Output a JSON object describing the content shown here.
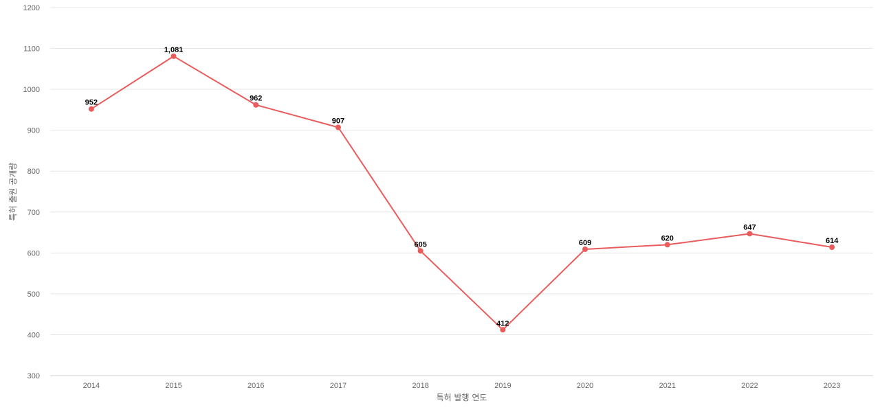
{
  "colors": {
    "series": "#e85c5c",
    "grid": "#e6e6e6",
    "tick": "#666666"
  },
  "chart_data": {
    "type": "line",
    "xlabel": "특허 발행 연도",
    "ylabel": "특허 출원 공개량",
    "x": [
      "2014",
      "2015",
      "2016",
      "2017",
      "2018",
      "2019",
      "2020",
      "2021",
      "2022",
      "2023"
    ],
    "ylim": [
      300,
      1200
    ],
    "yticks": [
      300,
      400,
      500,
      600,
      700,
      800,
      900,
      1000,
      1100,
      1200
    ],
    "grid": true,
    "legend": "none",
    "series": [
      {
        "values": [
          952,
          1081,
          962,
          907,
          605,
          412,
          609,
          620,
          647,
          614
        ],
        "data_labels": [
          "952",
          "1,081",
          "962",
          "907",
          "605",
          "412",
          "609",
          "620",
          "647",
          "614"
        ]
      }
    ]
  }
}
